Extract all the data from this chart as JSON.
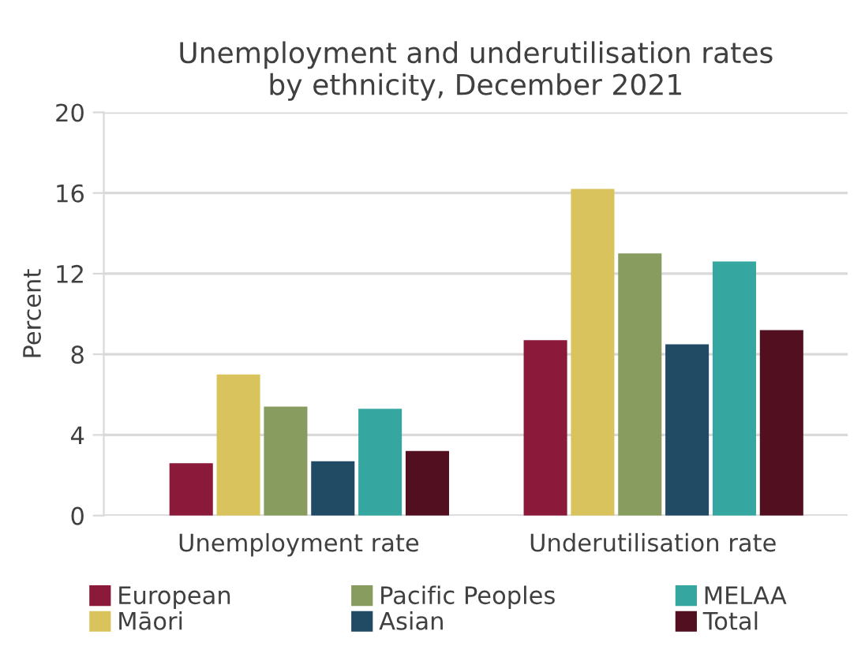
{
  "chart_data": {
    "type": "bar",
    "title": "Unemployment and underutilisation rates\nby ethnicity, December 2021",
    "ylabel": "Percent",
    "categories": [
      "Unemployment rate",
      "Underutilisation rate"
    ],
    "series": [
      {
        "name": "European",
        "color": "#8b1a3a",
        "values": [
          2.6,
          8.7
        ]
      },
      {
        "name": "Māori",
        "color": "#d9c35c",
        "values": [
          7.0,
          16.2
        ]
      },
      {
        "name": "Pacific Peoples",
        "color": "#889c5f",
        "values": [
          5.4,
          13.0
        ]
      },
      {
        "name": "Asian",
        "color": "#214a65",
        "values": [
          2.7,
          8.5
        ]
      },
      {
        "name": "MELAA",
        "color": "#35a7a0",
        "values": [
          5.3,
          12.6
        ]
      },
      {
        "name": "Total",
        "color": "#520f20",
        "values": [
          3.2,
          9.2
        ]
      }
    ],
    "ylim": [
      0,
      20
    ],
    "yticks": [
      0,
      4,
      8,
      12,
      16,
      20
    ],
    "grid": "y",
    "legend": "bottom"
  }
}
